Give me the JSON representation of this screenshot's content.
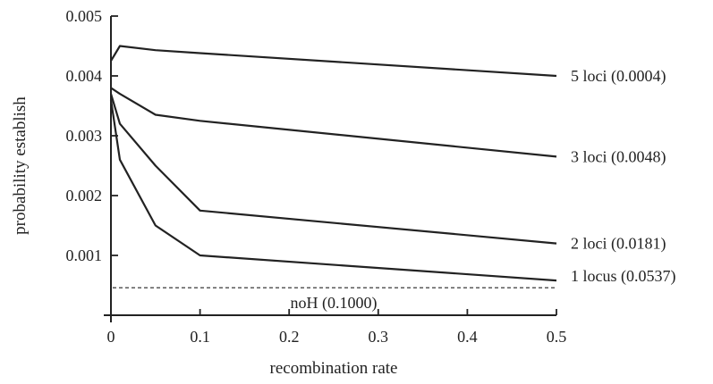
{
  "chart_data": {
    "type": "line",
    "title": "",
    "xlabel": "recombination rate",
    "ylabel": "probability establish",
    "xlim": [
      0,
      0.5
    ],
    "ylim": [
      0,
      0.005
    ],
    "x_ticks": [
      "0",
      "0.1",
      "0.2",
      "0.3",
      "0.4",
      "0.5"
    ],
    "y_ticks": [
      "0.001",
      "0.002",
      "0.003",
      "0.004",
      "0.005"
    ],
    "grid": false,
    "series": [
      {
        "name": "5 loci",
        "label": "5 loci  (0.0004)",
        "points": [
          [
            0,
            0.00425
          ],
          [
            0.01,
            0.0045
          ],
          [
            0.05,
            0.00443
          ],
          [
            0.1,
            0.00438
          ],
          [
            0.5,
            0.004
          ]
        ]
      },
      {
        "name": "3 loci",
        "label": "3 loci  (0.0048)",
        "points": [
          [
            0,
            0.0038
          ],
          [
            0.01,
            0.0037
          ],
          [
            0.05,
            0.00335
          ],
          [
            0.1,
            0.00325
          ],
          [
            0.5,
            0.00265
          ]
        ]
      },
      {
        "name": "2 loci",
        "label": "2 loci   (0.0181)",
        "points": [
          [
            0,
            0.0037
          ],
          [
            0.01,
            0.0032
          ],
          [
            0.05,
            0.0025
          ],
          [
            0.1,
            0.00175
          ],
          [
            0.5,
            0.0012
          ]
        ]
      },
      {
        "name": "1 locus",
        "label": "1 locus (0.0537)",
        "points": [
          [
            0,
            0.0036
          ],
          [
            0.01,
            0.0026
          ],
          [
            0.05,
            0.0015
          ],
          [
            0.1,
            0.001
          ],
          [
            0.5,
            0.00058
          ]
        ]
      }
    ],
    "reference_line": {
      "label": "noH (0.1000)",
      "y": 0.00046,
      "style": "dashed"
    }
  }
}
